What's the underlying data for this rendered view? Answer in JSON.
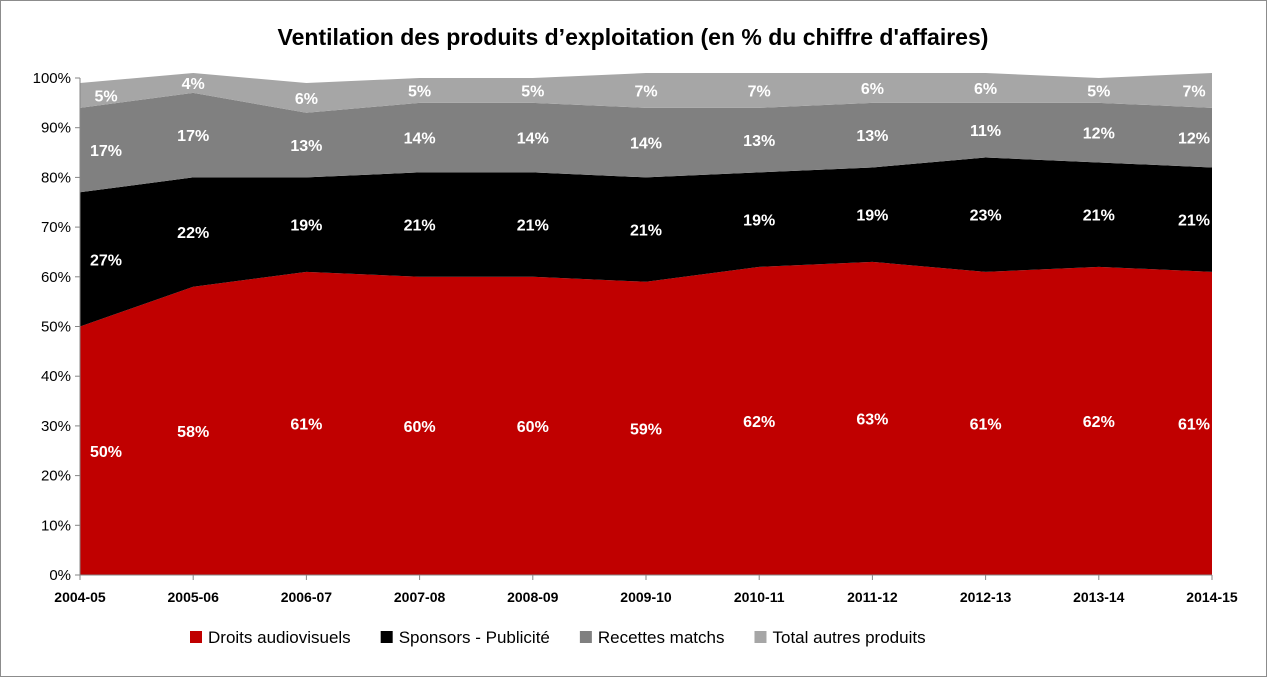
{
  "chart_data": {
    "type": "area",
    "stacked": true,
    "title": "Ventilation des produits d’exploitation (en % du chiffre d'affaires)",
    "xlabel": "",
    "ylabel": "",
    "ylim": [
      0,
      100
    ],
    "y_ticks": [
      "0%",
      "10%",
      "20%",
      "30%",
      "40%",
      "50%",
      "60%",
      "70%",
      "80%",
      "90%",
      "100%"
    ],
    "categories": [
      "2004-05",
      "2005-06",
      "2006-07",
      "2007-08",
      "2008-09",
      "2009-10",
      "2010-11",
      "2011-12",
      "2012-13",
      "2013-14",
      "2014-15"
    ],
    "legend_position": "bottom",
    "grid": false,
    "series": [
      {
        "name": "Droits audiovisuels",
        "color": "#c00000",
        "label_color": "#ffffff",
        "values": [
          50,
          58,
          61,
          60,
          60,
          59,
          62,
          63,
          61,
          62,
          61
        ],
        "labels": [
          "50%",
          "58%",
          "61%",
          "60%",
          "60%",
          "59%",
          "62%",
          "63%",
          "61%",
          "62%",
          "61%"
        ]
      },
      {
        "name": "Sponsors - Publicité",
        "color": "#000000",
        "label_color": "#ffffff",
        "values": [
          27,
          22,
          19,
          21,
          21,
          21,
          19,
          19,
          23,
          21,
          21
        ],
        "labels": [
          "27%",
          "22%",
          "19%",
          "21%",
          "21%",
          "21%",
          "19%",
          "19%",
          "23%",
          "21%",
          "21%"
        ]
      },
      {
        "name": "Recettes matchs",
        "color": "#808080",
        "label_color": "#ffffff",
        "values": [
          17,
          17,
          13,
          14,
          14,
          14,
          13,
          13,
          11,
          12,
          12
        ],
        "labels": [
          "17%",
          "17%",
          "13%",
          "14%",
          "14%",
          "14%",
          "13%",
          "13%",
          "11%",
          "12%",
          "12%"
        ]
      },
      {
        "name": "Total autres produits",
        "color": "#a6a6a6",
        "label_color": "#ffffff",
        "values": [
          5,
          4,
          6,
          5,
          5,
          7,
          7,
          6,
          6,
          5,
          7
        ],
        "labels": [
          "5%",
          "4%",
          "6%",
          "5%",
          "5%",
          "7%",
          "7%",
          "6%",
          "6%",
          "5%",
          "7%"
        ]
      }
    ]
  }
}
